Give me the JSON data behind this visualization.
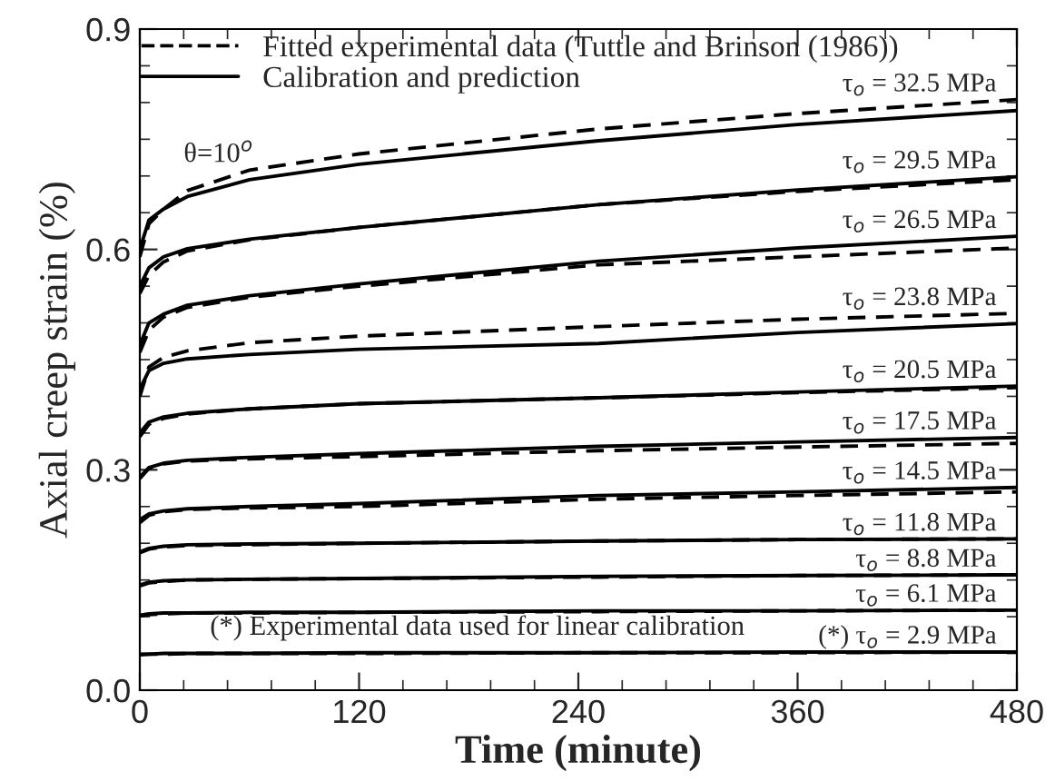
{
  "chart_data": {
    "type": "line",
    "xlabel": "Time (minute)",
    "ylabel": "Axial creep strain (%)",
    "x": [
      0,
      5,
      13,
      26,
      60,
      120,
      251,
      360,
      480
    ],
    "xlim": [
      0,
      480
    ],
    "xticks": [
      0,
      120,
      240,
      360,
      480
    ],
    "ylim": [
      0,
      0.9
    ],
    "yticks": [
      {
        "value": 0,
        "label": "0.0"
      },
      0.3,
      0.6,
      0.9
    ],
    "grid": false,
    "legend": "top left",
    "marker": "none",
    "series": [
      {
        "name": "Fitted experimental data (Tuttle and Brinson (1986))",
        "color": "#000000",
        "line_style": "dashed",
        "values": [
          0.59,
          0.635,
          0.655,
          0.68,
          0.708,
          0.73,
          0.764,
          0.785,
          0.804
        ]
      },
      {
        "name": "Calibration and prediction",
        "color": "#000000",
        "line_style": "solid",
        "values": [
          0.6,
          0.64,
          0.655,
          0.672,
          0.695,
          0.716,
          0.748,
          0.77,
          0.789
        ]
      },
      {
        "color": "#000000",
        "line_style": "dashed",
        "values": [
          0.54,
          0.565,
          0.583,
          0.598,
          0.613,
          0.63,
          0.661,
          0.679,
          0.695
        ]
      },
      {
        "color": "#000000",
        "line_style": "solid",
        "values": [
          0.55,
          0.575,
          0.59,
          0.601,
          0.614,
          0.63,
          0.661,
          0.681,
          0.699
        ]
      },
      {
        "color": "#000000",
        "line_style": "dashed",
        "values": [
          0.46,
          0.49,
          0.508,
          0.521,
          0.535,
          0.55,
          0.579,
          0.59,
          0.602
        ]
      },
      {
        "color": "#000000",
        "line_style": "solid",
        "values": [
          0.47,
          0.5,
          0.512,
          0.524,
          0.537,
          0.553,
          0.584,
          0.602,
          0.618
        ]
      },
      {
        "color": "#000000",
        "line_style": "dashed",
        "values": [
          0.4,
          0.44,
          0.453,
          0.462,
          0.473,
          0.482,
          0.495,
          0.505,
          0.513
        ]
      },
      {
        "color": "#000000",
        "line_style": "solid",
        "values": [
          0.41,
          0.435,
          0.445,
          0.451,
          0.457,
          0.464,
          0.472,
          0.487,
          0.499
        ]
      },
      {
        "color": "#000000",
        "line_style": "dashed",
        "values": [
          0.345,
          0.362,
          0.37,
          0.376,
          0.383,
          0.39,
          0.398,
          0.405,
          0.412
        ]
      },
      {
        "color": "#000000",
        "line_style": "solid",
        "values": [
          0.35,
          0.365,
          0.372,
          0.377,
          0.383,
          0.39,
          0.398,
          0.406,
          0.414
        ]
      },
      {
        "color": "#000000",
        "line_style": "dashed",
        "values": [
          0.288,
          0.302,
          0.308,
          0.312,
          0.315,
          0.318,
          0.326,
          0.331,
          0.336
        ]
      },
      {
        "color": "#000000",
        "line_style": "solid",
        "values": [
          0.29,
          0.303,
          0.309,
          0.313,
          0.317,
          0.322,
          0.332,
          0.338,
          0.344
        ]
      },
      {
        "color": "#000000",
        "line_style": "dashed",
        "values": [
          0.228,
          0.238,
          0.243,
          0.246,
          0.248,
          0.25,
          0.26,
          0.265,
          0.27
        ]
      },
      {
        "color": "#000000",
        "line_style": "solid",
        "values": [
          0.232,
          0.24,
          0.244,
          0.247,
          0.25,
          0.254,
          0.265,
          0.27,
          0.276
        ]
      },
      {
        "color": "#000000",
        "line_style": "dashed",
        "values": [
          0.187,
          0.192,
          0.195,
          0.197,
          0.198,
          0.2,
          0.203,
          0.205,
          0.206
        ]
      },
      {
        "color": "#000000",
        "line_style": "solid",
        "values": [
          0.188,
          0.193,
          0.196,
          0.198,
          0.199,
          0.2,
          0.203,
          0.205,
          0.206
        ]
      },
      {
        "color": "#000000",
        "line_style": "dashed",
        "values": [
          0.142,
          0.146,
          0.148,
          0.15,
          0.151,
          0.152,
          0.154,
          0.156,
          0.157
        ]
      },
      {
        "color": "#000000",
        "line_style": "solid",
        "values": [
          0.143,
          0.147,
          0.149,
          0.15,
          0.151,
          0.152,
          0.155,
          0.156,
          0.157
        ]
      },
      {
        "color": "#000000",
        "line_style": "dashed",
        "values": [
          0.101,
          0.103,
          0.104,
          0.105,
          0.105,
          0.106,
          0.107,
          0.108,
          0.109
        ]
      },
      {
        "color": "#000000",
        "line_style": "solid",
        "values": [
          0.102,
          0.104,
          0.105,
          0.105,
          0.106,
          0.106,
          0.108,
          0.108,
          0.109
        ]
      },
      {
        "color": "#000000",
        "line_style": "dashed",
        "values": [
          0.048,
          0.049,
          0.049,
          0.05,
          0.05,
          0.05,
          0.051,
          0.051,
          0.052
        ]
      },
      {
        "color": "#000000",
        "line_style": "solid",
        "values": [
          0.049,
          0.049,
          0.05,
          0.05,
          0.05,
          0.051,
          0.051,
          0.052,
          0.052
        ]
      }
    ],
    "annotations": [
      "θ=10$^{o}$",
      "(*) Experimental data used for linear calibration",
      "τ$_{o}$ = 32.5 MPa",
      "τ$_{o}$ = 29.5 MPa",
      "τ$_{o}$ = 26.5 MPa",
      "τ$_{o}$ = 23.8 MPa",
      "τ$_{o}$ = 20.5 MPa",
      "τ$_{o}$ = 17.5 MPa",
      "τ$_{o}$ = 14.5 MPa",
      "τ$_{o}$ = 11.8 MPa",
      "τ$_{o}$ = 8.8 MPa",
      "τ$_{o}$ = 6.1 MPa",
      "(*) τ$_{o}$ = 2.9 MPa"
    ]
  }
}
